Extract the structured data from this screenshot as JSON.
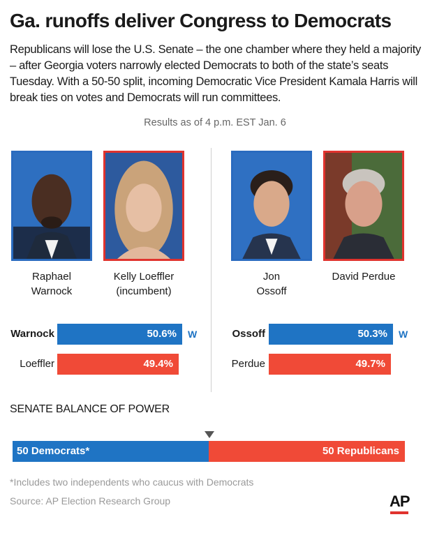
{
  "header": {
    "title": "Ga. runoffs deliver Congress to Democrats",
    "intro": "Republicans will lose the U.S. Senate – the one chamber where they held a majority – after Georgia voters narrowly elected Democrats to both of the state’s seats Tuesday. With a 50-50 split, incoming Democratic Vice President Kamala Harris will break ties on votes and Democrats will run committees.",
    "as_of": "Results as of 4 p.m. EST Jan. 6"
  },
  "races": [
    {
      "candidates": [
        {
          "name_line1": "Raphael",
          "name_line2": "Warnock",
          "party_color": "#1f74c4"
        },
        {
          "name_line1": "Kelly Loeffler",
          "name_line2": "(incumbent)",
          "party_color": "#f04a37"
        }
      ],
      "results": [
        {
          "label": "Warnock",
          "value": 50.6,
          "value_label": "50.6%",
          "winner": true,
          "winner_mark": "W"
        },
        {
          "label": "Loeffler",
          "value": 49.4,
          "value_label": "49.4%",
          "winner": false
        }
      ]
    },
    {
      "candidates": [
        {
          "name_line1": "Jon",
          "name_line2": "Ossoff",
          "party_color": "#1f74c4"
        },
        {
          "name_line1": "David Perdue",
          "name_line2": "",
          "party_color": "#f04a37"
        }
      ],
      "results": [
        {
          "label": "Ossoff",
          "value": 50.3,
          "value_label": "50.3%",
          "winner": true,
          "winner_mark": "W"
        },
        {
          "label": "Perdue",
          "value": 49.7,
          "value_label": "49.7%",
          "winner": false
        }
      ]
    }
  ],
  "chart_data": [
    {
      "type": "bar",
      "categories": [
        "Warnock",
        "Loeffler"
      ],
      "values": [
        50.6,
        49.4
      ],
      "title": "",
      "xlabel": "",
      "ylabel": ""
    },
    {
      "type": "bar",
      "categories": [
        "Ossoff",
        "Perdue"
      ],
      "values": [
        50.3,
        49.7
      ],
      "title": "",
      "xlabel": "",
      "ylabel": ""
    },
    {
      "type": "bar",
      "title": "SENATE BALANCE OF POWER",
      "categories": [
        "50 Democrats*",
        "50 Republicans"
      ],
      "values": [
        50,
        50
      ],
      "total": 100
    }
  ],
  "balance": {
    "title": "SENATE BALANCE OF POWER",
    "dem_label": "50 Democrats*",
    "rep_label": "50 Republicans",
    "dem_seats": 50,
    "rep_seats": 50
  },
  "footer": {
    "footnote": "*Includes two independents who caucus with Democrats",
    "source": "Source: AP Election Research Group",
    "logo": "AP"
  },
  "colors": {
    "democrat": "#1f74c4",
    "republican": "#f04a37",
    "dem_border": "#2a6bbf",
    "rep_border": "#e0332e"
  }
}
